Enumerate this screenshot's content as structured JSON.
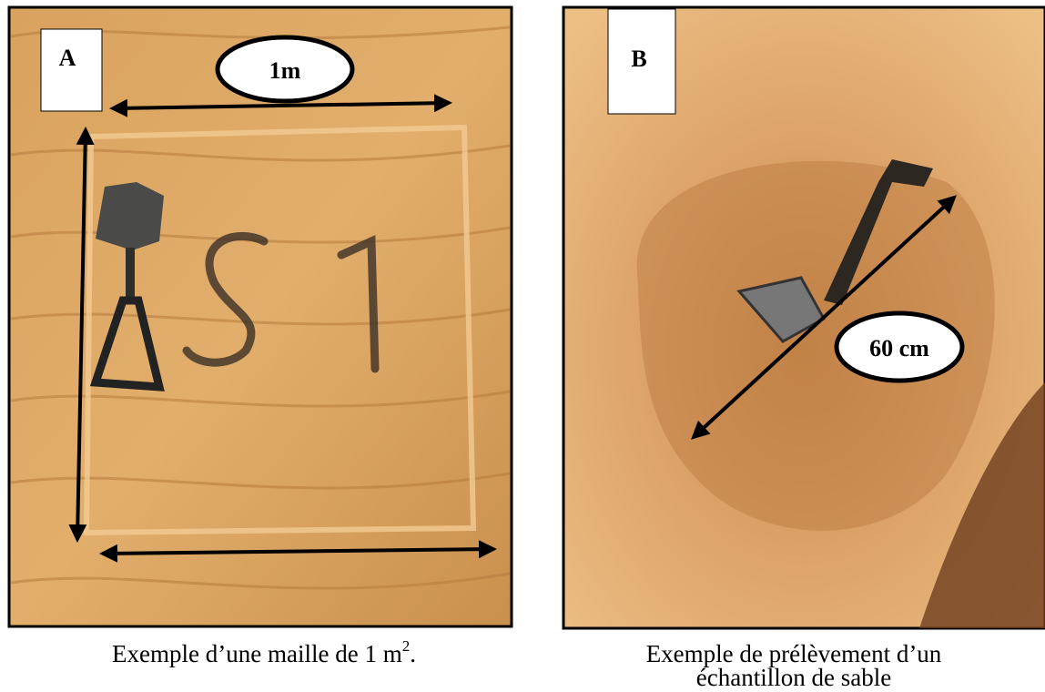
{
  "panel_a": {
    "label": "A",
    "measure": "1m",
    "caption": {
      "text": "Exemple d’une maille de 1 m",
      "superscript": "2",
      "end": "."
    }
  },
  "panel_b": {
    "label": "B",
    "measure": "60 cm",
    "caption": {
      "lines": [
        "Exemple de prélèvement d’un",
        "échantillon de sable"
      ]
    }
  }
}
